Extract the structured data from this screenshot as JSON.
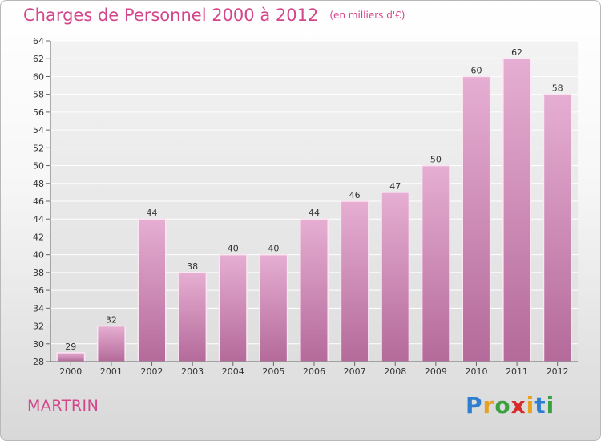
{
  "title": "Charges de Personnel 2000 à 2012",
  "unit_note": "(en milliers d'€)",
  "commune": "MARTRIN",
  "logo_text": "Proxiti",
  "colors": {
    "bar": "#d487b5",
    "bar_dark": "#b9649a",
    "accent": "#d4468a"
  },
  "chart_data": {
    "type": "bar",
    "title": "Charges de Personnel 2000 à 2012",
    "subtitle": "(en milliers d'€)",
    "categories": [
      "2000",
      "2001",
      "2002",
      "2003",
      "2004",
      "2005",
      "2006",
      "2007",
      "2008",
      "2009",
      "2010",
      "2011",
      "2012"
    ],
    "values": [
      29,
      32,
      44,
      38,
      40,
      40,
      44,
      46,
      47,
      50,
      60,
      62,
      58
    ],
    "xlabel": "",
    "ylabel": "",
    "ylim": [
      28,
      64
    ],
    "yticks": [
      28,
      30,
      32,
      34,
      36,
      38,
      40,
      42,
      44,
      46,
      48,
      50,
      52,
      54,
      56,
      58,
      60,
      62,
      64
    ],
    "grid": true,
    "data_labels": true
  }
}
